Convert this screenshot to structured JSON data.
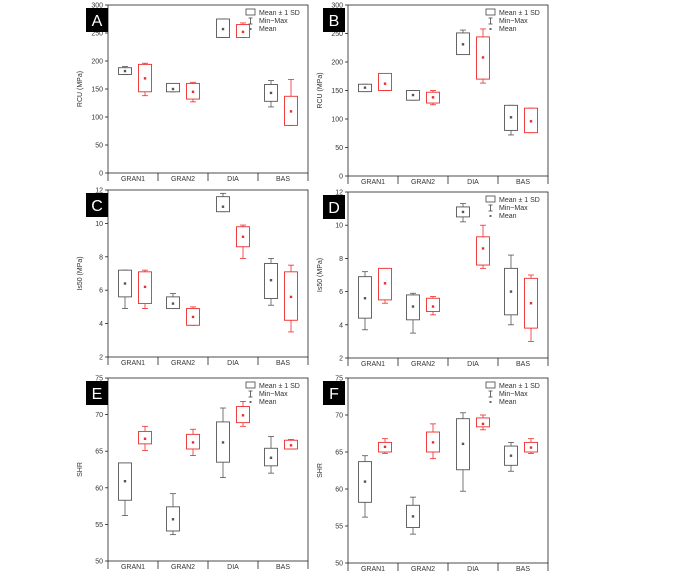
{
  "colors": {
    "black_series": "#555555",
    "red_series": "#ee2b2b",
    "panel_label_bg": "#000000",
    "panel_label_fg": "#ffffff",
    "axis": "#222222"
  },
  "legend": {
    "entries": [
      "Mean ± 1 SD",
      "Min~Max",
      "Mean"
    ],
    "placement": "top-right"
  },
  "chart_data": [
    {
      "panel": "A",
      "type": "box",
      "ylabel": "RCU (MPa)",
      "ylim": [
        0,
        300
      ],
      "yticks": [
        "0",
        "50",
        "100",
        "150",
        "200",
        "250",
        "300"
      ],
      "categories": [
        "GRAN1",
        "GRAN2",
        "DIA",
        "BAS"
      ],
      "legend": true,
      "series": [
        {
          "color": "black",
          "mean": [
            182,
            150,
            257,
            143
          ],
          "sd_low": [
            176,
            145,
            242,
            128
          ],
          "sd_high": [
            188,
            160,
            275,
            158
          ],
          "min": [
            176,
            145,
            242,
            118
          ],
          "max": [
            190,
            160,
            275,
            165
          ]
        },
        {
          "color": "red",
          "mean": [
            169,
            145,
            252,
            110
          ],
          "sd_low": [
            145,
            132,
            242,
            85
          ],
          "sd_high": [
            194,
            160,
            265,
            137
          ],
          "min": [
            138,
            127,
            242,
            85
          ],
          "max": [
            196,
            162,
            268,
            167
          ]
        }
      ]
    },
    {
      "panel": "B",
      "type": "box",
      "ylabel": "RCU (MPa)",
      "ylim": [
        0,
        300
      ],
      "yticks": [
        "0",
        "50",
        "100",
        "150",
        "200",
        "250",
        "300"
      ],
      "categories": [
        "GRAN1",
        "GRAN2",
        "DIA",
        "BAS"
      ],
      "legend": true,
      "series": [
        {
          "color": "black",
          "mean": [
            155,
            142,
            231,
            103
          ],
          "sd_low": [
            148,
            133,
            213,
            80
          ],
          "sd_high": [
            161,
            150,
            251,
            124
          ],
          "min": [
            148,
            133,
            213,
            72
          ],
          "max": [
            161,
            150,
            256,
            124
          ]
        },
        {
          "color": "red",
          "mean": [
            162,
            138,
            208,
            96
          ],
          "sd_low": [
            150,
            128,
            170,
            76
          ],
          "sd_high": [
            180,
            147,
            244,
            119
          ],
          "min": [
            150,
            125,
            163,
            76
          ],
          "max": [
            180,
            150,
            258,
            119
          ]
        }
      ]
    },
    {
      "panel": "C",
      "type": "box",
      "ylabel": "Is50 (MPa)",
      "ylim": [
        2,
        12
      ],
      "yticks": [
        "2",
        "4",
        "6",
        "8",
        "10",
        "12"
      ],
      "categories": [
        "GRAN1",
        "GRAN2",
        "DIA",
        "BAS"
      ],
      "legend": false,
      "series": [
        {
          "color": "black",
          "mean": [
            6.4,
            5.2,
            11.0,
            6.6
          ],
          "sd_low": [
            5.6,
            4.9,
            10.7,
            5.5
          ],
          "sd_high": [
            7.2,
            5.6,
            11.6,
            7.6
          ],
          "min": [
            4.9,
            4.9,
            10.7,
            5.1
          ],
          "max": [
            7.2,
            5.8,
            11.8,
            7.9
          ]
        },
        {
          "color": "red",
          "mean": [
            6.2,
            4.4,
            9.2,
            5.6
          ],
          "sd_low": [
            5.2,
            3.9,
            8.6,
            4.2
          ],
          "sd_high": [
            7.1,
            4.9,
            9.8,
            7.1
          ],
          "min": [
            4.9,
            3.9,
            7.9,
            3.5
          ],
          "max": [
            7.2,
            5.0,
            9.9,
            7.5
          ]
        }
      ]
    },
    {
      "panel": "D",
      "type": "box",
      "ylabel": "Is50 (MPa)",
      "ylim": [
        2,
        12
      ],
      "yticks": [
        "2",
        "4",
        "6",
        "8",
        "10",
        "12"
      ],
      "categories": [
        "GRAN1",
        "GRAN2",
        "DIA",
        "BAS"
      ],
      "legend": true,
      "series": [
        {
          "color": "black",
          "mean": [
            5.6,
            5.1,
            10.8,
            6.0
          ],
          "sd_low": [
            4.4,
            4.3,
            10.5,
            4.6
          ],
          "sd_high": [
            6.9,
            5.8,
            11.1,
            7.4
          ],
          "min": [
            3.7,
            3.5,
            10.2,
            4.0
          ],
          "max": [
            7.2,
            5.9,
            11.3,
            8.2
          ]
        },
        {
          "color": "red",
          "mean": [
            6.5,
            5.1,
            8.6,
            5.3
          ],
          "sd_low": [
            5.5,
            4.8,
            7.6,
            3.8
          ],
          "sd_high": [
            7.4,
            5.6,
            9.3,
            6.8
          ],
          "min": [
            5.3,
            4.6,
            7.4,
            3.0
          ],
          "max": [
            7.4,
            5.7,
            10.0,
            7.0
          ]
        }
      ]
    },
    {
      "panel": "E",
      "type": "box",
      "ylabel": "SHR",
      "ylim": [
        50,
        75
      ],
      "yticks": [
        "50",
        "55",
        "60",
        "65",
        "70",
        "75"
      ],
      "categories": [
        "GRAN1",
        "GRAN2",
        "DIA",
        "BAS"
      ],
      "legend": true,
      "series": [
        {
          "color": "black",
          "mean": [
            60.9,
            55.7,
            66.2,
            64.1
          ],
          "sd_low": [
            58.3,
            54.1,
            63.5,
            63.0
          ],
          "sd_high": [
            63.4,
            57.4,
            69.0,
            65.4
          ],
          "min": [
            56.2,
            53.6,
            61.4,
            62.0
          ],
          "max": [
            63.4,
            59.2,
            70.9,
            67.0
          ]
        },
        {
          "color": "red",
          "mean": [
            66.7,
            66.2,
            69.9,
            65.8
          ],
          "sd_low": [
            66.0,
            65.3,
            68.9,
            65.3
          ],
          "sd_high": [
            67.7,
            67.3,
            71.1,
            66.5
          ],
          "min": [
            65.1,
            64.4,
            68.4,
            65.3
          ],
          "max": [
            68.4,
            68.0,
            71.8,
            66.6
          ]
        }
      ]
    },
    {
      "panel": "F",
      "type": "box",
      "ylabel": "SHR",
      "ylim": [
        50,
        75
      ],
      "yticks": [
        "50",
        "55",
        "60",
        "65",
        "70",
        "75"
      ],
      "categories": [
        "GRAN1",
        "GRAN2",
        "DIA",
        "BAS"
      ],
      "legend": true,
      "series": [
        {
          "color": "black",
          "mean": [
            61.0,
            56.3,
            66.1,
            64.5
          ],
          "sd_low": [
            58.2,
            54.8,
            62.6,
            63.2
          ],
          "sd_high": [
            63.7,
            57.8,
            69.5,
            65.8
          ],
          "min": [
            56.2,
            53.9,
            59.7,
            62.4
          ],
          "max": [
            64.5,
            58.9,
            70.3,
            66.3
          ]
        },
        {
          "color": "red",
          "mean": [
            65.7,
            66.3,
            68.8,
            65.6
          ],
          "sd_low": [
            65.0,
            65.0,
            68.4,
            65.0
          ],
          "sd_high": [
            66.3,
            67.7,
            69.6,
            66.3
          ],
          "min": [
            64.8,
            64.1,
            68.0,
            64.8
          ],
          "max": [
            66.8,
            68.8,
            70.0,
            66.8
          ]
        }
      ]
    }
  ]
}
